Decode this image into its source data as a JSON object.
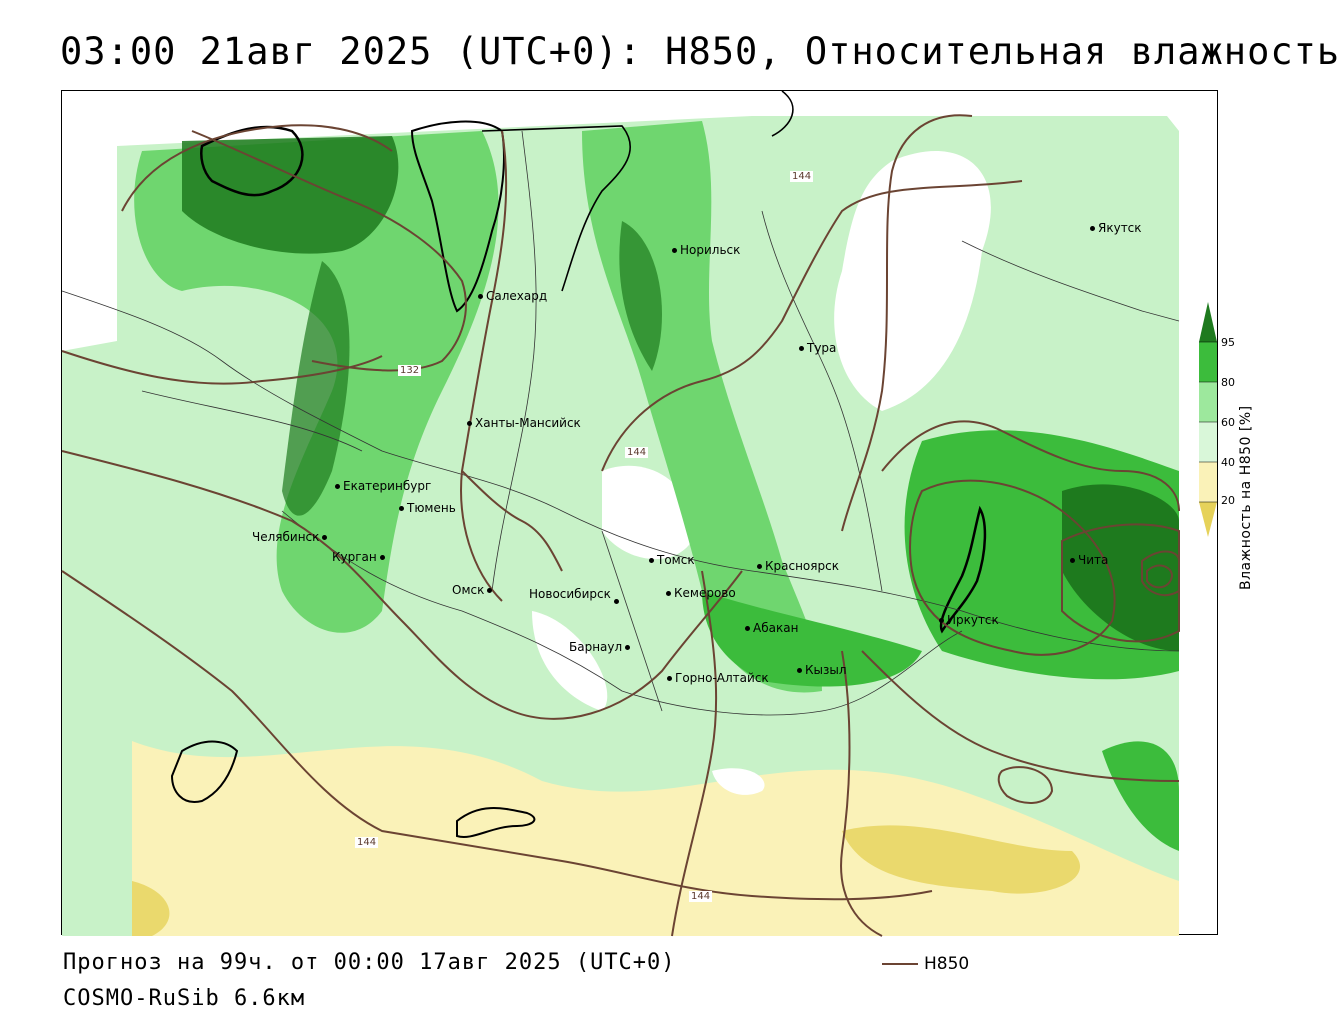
{
  "title": "03:00 21авг 2025 (UTC+0): H850, Относительная влажность",
  "forecast_line": "Прогноз на 99ч. от 00:00 17авг 2025 (UTC+0)",
  "model_line": "COSMO-RuSib 6.6км",
  "legend": {
    "line_label": "H850",
    "line_color": "#6b4433"
  },
  "colorbar": {
    "title": "Влажность на H850 [%]",
    "ticks": [
      "95",
      "80",
      "60",
      "40",
      "20"
    ],
    "colors": [
      "#1e7a1e",
      "#3cbc3c",
      "#9de89d",
      "#d9f7d9",
      "#ffffff",
      "#faf2b8",
      "#e6d25a"
    ]
  },
  "contour_labels": [
    "144",
    "132",
    "144",
    "144",
    "144"
  ],
  "cities": [
    {
      "name": "Якутск"
    },
    {
      "name": "Норильск"
    },
    {
      "name": "Салехард"
    },
    {
      "name": "Тура"
    },
    {
      "name": "Ханты-Мансийск"
    },
    {
      "name": "Екатеринбург"
    },
    {
      "name": "Тюмень"
    },
    {
      "name": "Челябинск"
    },
    {
      "name": "Курган"
    },
    {
      "name": "Омск"
    },
    {
      "name": "Новосибирск"
    },
    {
      "name": "Томск"
    },
    {
      "name": "Кемерово"
    },
    {
      "name": "Красноярск"
    },
    {
      "name": "Барнаул"
    },
    {
      "name": "Абакан"
    },
    {
      "name": "Горно-Алтайск"
    },
    {
      "name": "Кызыл"
    },
    {
      "name": "Иркутск"
    },
    {
      "name": "Чита"
    }
  ]
}
